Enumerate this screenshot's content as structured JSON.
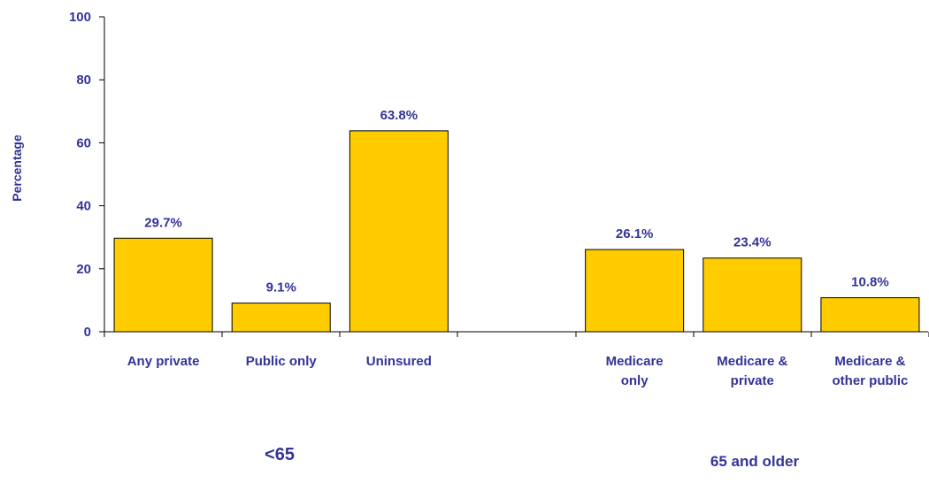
{
  "chart_data": {
    "type": "bar",
    "title": "",
    "ylabel": "Percentage",
    "xlabel": "",
    "ylim": [
      0,
      100
    ],
    "yticks": [
      "0",
      "20",
      "40",
      "60",
      "80",
      "100"
    ],
    "categories": [
      [
        "Any private"
      ],
      [
        "Public only"
      ],
      [
        "Uninsured"
      ],
      [
        ""
      ],
      [
        "Medicare",
        "only"
      ],
      [
        "Medicare &",
        "private"
      ],
      [
        "Medicare &",
        "other public"
      ]
    ],
    "values": [
      29.7,
      9.1,
      63.8,
      null,
      26.1,
      23.4,
      10.8
    ],
    "data_labels": [
      "29.7%",
      "9.1%",
      "63.8%",
      "",
      "26.1%",
      "23.4%",
      "10.8%"
    ],
    "groups": [
      {
        "label": "<65",
        "categories": [
          0,
          1,
          2
        ]
      },
      {
        "label": "65 and older",
        "categories": [
          4,
          5,
          6
        ]
      }
    ],
    "grid": false,
    "legend": "none",
    "colors": {
      "bar_fill": "#FFCC00",
      "bar_stroke": "#000000",
      "text": "#333399",
      "axis": "#000000"
    }
  }
}
